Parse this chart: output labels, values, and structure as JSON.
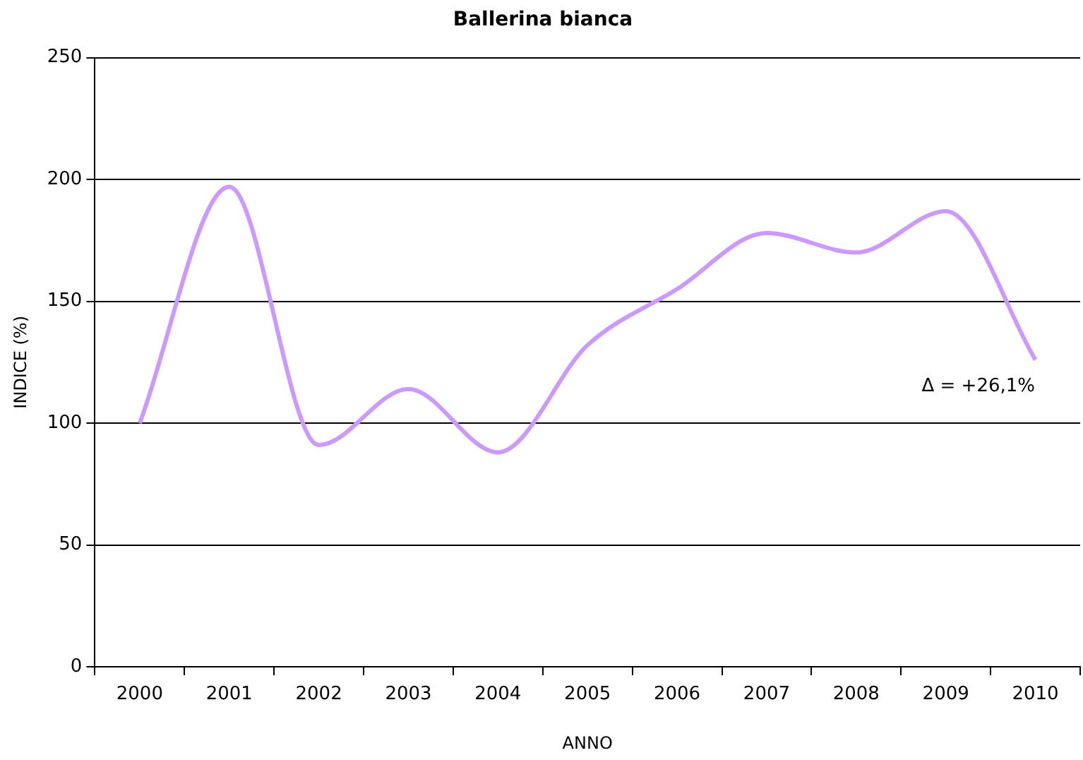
{
  "chart_data": {
    "type": "line",
    "title": "Ballerina bianca",
    "xlabel": "ANNO",
    "ylabel": "INDICE (%)",
    "categories": [
      "2000",
      "2001",
      "2002",
      "2003",
      "2004",
      "2005",
      "2006",
      "2007",
      "2008",
      "2009",
      "2010"
    ],
    "series": [
      {
        "color": "#cc99ff",
        "values": [
          100,
          197,
          91,
          114,
          88,
          132,
          155,
          178,
          170,
          187,
          126
        ]
      }
    ],
    "ylim": [
      0,
      250
    ],
    "yticks": [
      0,
      50,
      100,
      150,
      200,
      250
    ],
    "grid": "y",
    "legend": false,
    "marker": "none",
    "line_style": "solid",
    "annotations": [
      "Δ = +26,1%"
    ]
  }
}
